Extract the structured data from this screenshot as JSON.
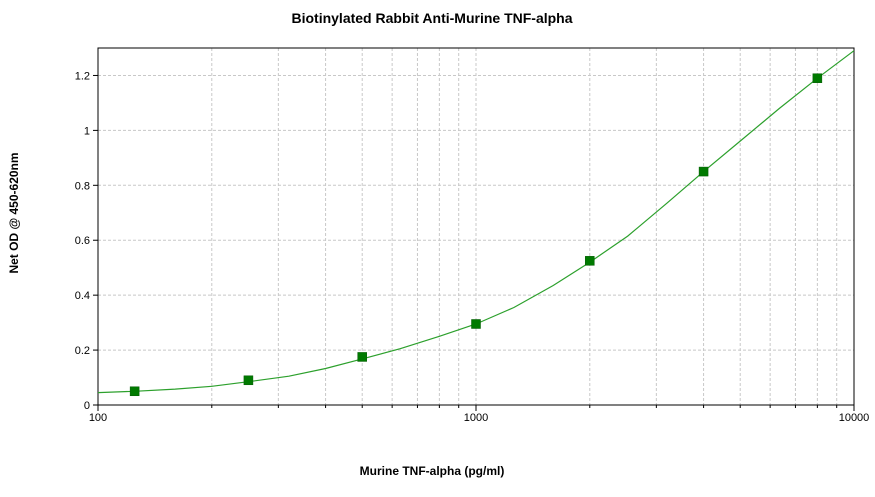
{
  "chart_data": {
    "type": "scatter",
    "title": "Biotinylated Rabbit Anti-Murine TNF-alpha",
    "xlabel": "Murine TNF-alpha (pg/ml)",
    "ylabel": "Net OD @ 450-620nm",
    "x_scale": "log",
    "xlim": [
      100,
      10000
    ],
    "ylim": [
      0,
      1.3
    ],
    "x_ticks": [
      100,
      1000,
      10000
    ],
    "x_tick_labels": [
      "100",
      "1000",
      "10000"
    ],
    "y_ticks": [
      0,
      0.2,
      0.4,
      0.6,
      0.8,
      1,
      1.2
    ],
    "y_tick_labels": [
      "0",
      "0.2",
      "0.4",
      "0.6",
      "0.8",
      "1",
      "1.2"
    ],
    "grid": true,
    "legend": "none",
    "series": [
      {
        "x": [
          125,
          250,
          500,
          1000,
          2000,
          4000,
          8000
        ],
        "y": [
          0.05,
          0.09,
          0.175,
          0.295,
          0.525,
          0.85,
          1.19
        ]
      }
    ],
    "fit_curve": {
      "x": [
        100,
        125,
        160,
        200,
        250,
        320,
        400,
        500,
        630,
        800,
        1000,
        1260,
        1600,
        2000,
        2520,
        3200,
        4000,
        5040,
        6350,
        8000,
        10000
      ],
      "y": [
        0.045,
        0.05,
        0.058,
        0.068,
        0.085,
        0.105,
        0.133,
        0.168,
        0.205,
        0.25,
        0.295,
        0.355,
        0.435,
        0.52,
        0.615,
        0.735,
        0.85,
        0.965,
        1.08,
        1.19,
        1.29
      ]
    },
    "colors": {
      "marker": "#007a00",
      "curve": "#2ca02c",
      "grid": "#c8c8c8"
    }
  }
}
